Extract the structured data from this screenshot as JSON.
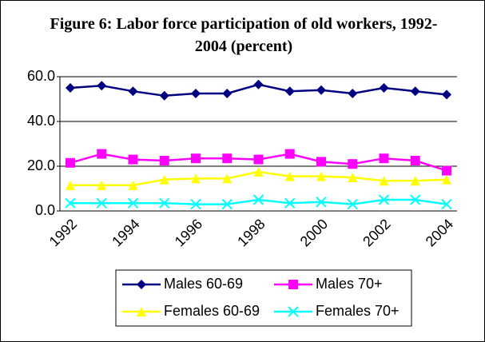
{
  "chart_data": {
    "type": "line",
    "title": "Figure 6: Labor force participation of old workers, 1992-2004 (percent)",
    "categories": [
      "1992",
      null,
      "1994",
      null,
      "1996",
      null,
      "1998",
      null,
      "2000",
      null,
      "2002",
      null,
      "2004"
    ],
    "series": [
      {
        "name": "Males 60-69",
        "color": "#000080",
        "marker": "diamond",
        "values": [
          55.0,
          56.0,
          53.5,
          51.5,
          52.5,
          52.5,
          56.5,
          53.5,
          54.0,
          52.5,
          55.0,
          53.5,
          52.0
        ]
      },
      {
        "name": "Males 70+",
        "color": "#ff00ff",
        "marker": "square",
        "values": [
          21.5,
          25.5,
          23.0,
          22.5,
          23.5,
          23.5,
          23.0,
          25.5,
          22.0,
          21.0,
          23.5,
          22.5,
          18.0
        ]
      },
      {
        "name": "Females 60-69",
        "color": "#ffff00",
        "marker": "triangle",
        "values": [
          11.5,
          11.5,
          11.5,
          14.0,
          14.5,
          14.5,
          17.5,
          15.5,
          15.5,
          15.0,
          13.5,
          13.5,
          14.0
        ]
      },
      {
        "name": "Females 70+",
        "color": "#00ffff",
        "marker": "x",
        "values": [
          3.5,
          3.5,
          3.5,
          3.5,
          3.0,
          3.0,
          5.0,
          3.5,
          4.0,
          3.0,
          5.0,
          5.0,
          3.0
        ]
      }
    ],
    "ylim": [
      0,
      60
    ],
    "yticks": [
      {
        "value": 0,
        "label": "0.0"
      },
      {
        "value": 20,
        "label": "20.0"
      },
      {
        "value": 40,
        "label": "40.0"
      },
      {
        "value": 60,
        "label": "60.0"
      }
    ],
    "grid": true,
    "legend": "bottom"
  }
}
